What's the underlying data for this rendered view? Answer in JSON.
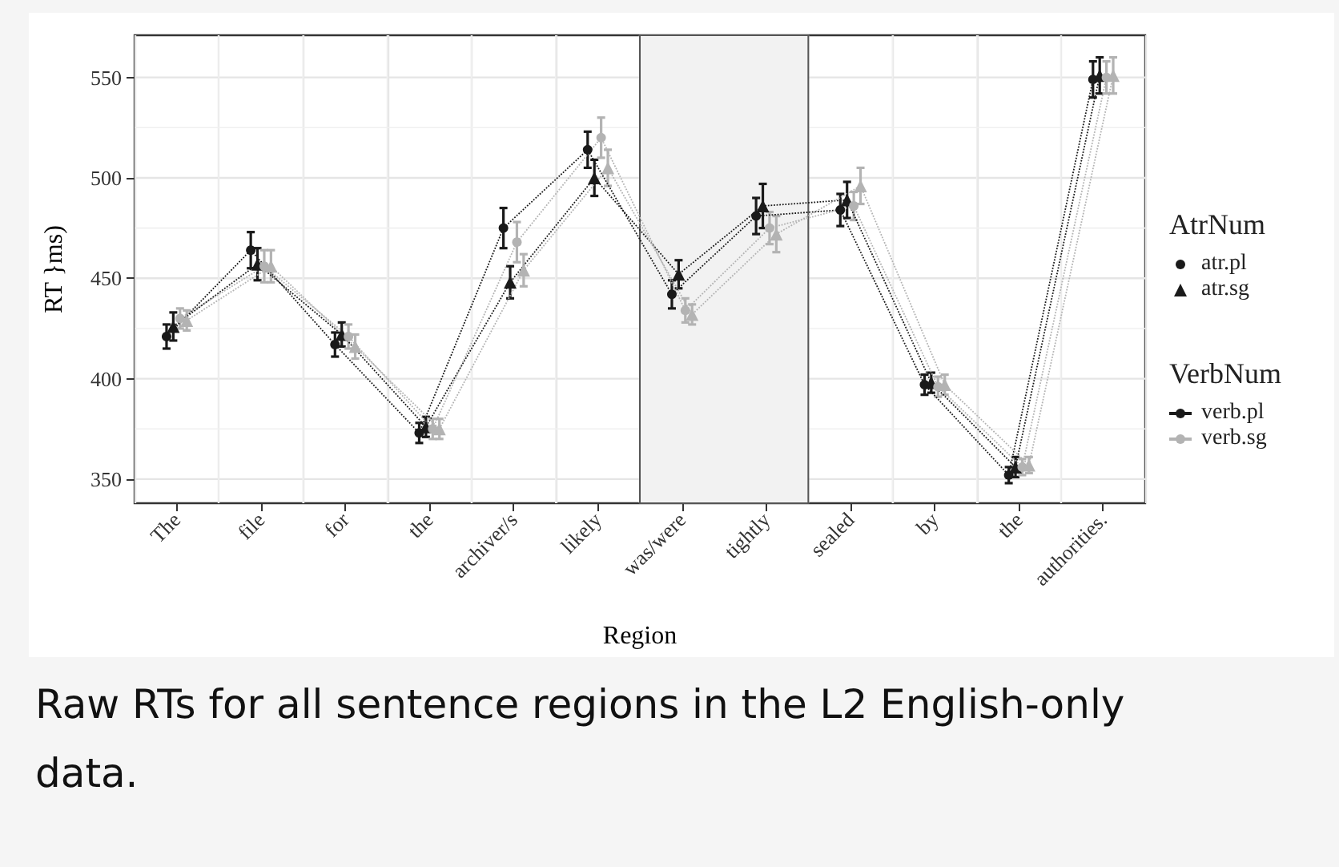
{
  "chart_data": {
    "type": "line",
    "xlabel": "Region",
    "ylabel": "RT }ms)",
    "categories": [
      "The",
      "file",
      "for",
      "the",
      "archiver/s",
      "likely",
      "was/were",
      "tightly",
      "sealed",
      "by",
      "the",
      "authorities."
    ],
    "series": [
      {
        "color": "#1a1a1a",
        "marker": "circle",
        "values": [
          421,
          464,
          417,
          373,
          475,
          514,
          442,
          481,
          484,
          397,
          352,
          549
        ],
        "errors": [
          6,
          9,
          6,
          5,
          10,
          9,
          7,
          9,
          8,
          5,
          4,
          9
        ]
      },
      {
        "color": "#1a1a1a",
        "marker": "triangle",
        "values": [
          426,
          457,
          422,
          376,
          448,
          500,
          452,
          486,
          489,
          398,
          356,
          551
        ],
        "errors": [
          7,
          8,
          6,
          5,
          8,
          9,
          7,
          11,
          9,
          5,
          5,
          9
        ]
      },
      {
        "color": "#b3b3b3",
        "marker": "circle",
        "values": [
          430,
          456,
          421,
          375,
          468,
          520,
          434,
          475,
          486,
          396,
          356,
          550
        ],
        "errors": [
          5,
          8,
          6,
          5,
          10,
          10,
          6,
          8,
          7,
          5,
          4,
          8
        ]
      },
      {
        "color": "#b3b3b3",
        "marker": "triangle",
        "values": [
          429,
          456,
          416,
          375,
          454,
          505,
          432,
          472,
          496,
          397,
          357,
          551
        ],
        "errors": [
          5,
          8,
          6,
          5,
          8,
          9,
          5,
          9,
          9,
          5,
          4,
          9
        ]
      }
    ],
    "ylim": [
      338,
      571
    ],
    "yticks": [
      350,
      400,
      450,
      500,
      550
    ],
    "grid": true,
    "line_style": "dotted",
    "bands": [
      {
        "axis": "x",
        "from": "was/were",
        "to": "tightly",
        "color": "#f2f2f2"
      }
    ],
    "annotations": [
      "AtrNum",
      "atr.pl",
      "atr.sg",
      "VerbNum",
      "verb.pl",
      "verb.sg",
      "Raw RTs for all sentence regions in the L2 English-only data."
    ]
  }
}
